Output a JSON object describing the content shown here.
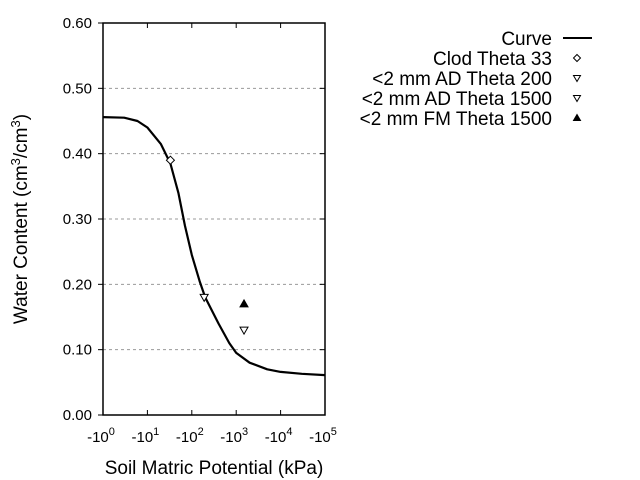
{
  "chart_data": {
    "type": "line",
    "title": "",
    "xlabel": "Soil Matric Potential (kPa)",
    "ylabel": "Water Content (cm3/cm3)",
    "ylabel_parts": {
      "pre": "Water Content (cm",
      "sup1": "3",
      "mid": "/cm",
      "sup2": "3",
      "post": ")"
    },
    "x_scale": "log (negative)",
    "xlim": [
      -1,
      -100000
    ],
    "ylim": [
      0.0,
      0.6
    ],
    "x_ticks": [
      {
        "base": "-10",
        "exp": "0"
      },
      {
        "base": "-10",
        "exp": "1"
      },
      {
        "base": "-10",
        "exp": "2"
      },
      {
        "base": "-10",
        "exp": "3"
      },
      {
        "base": "-10",
        "exp": "4"
      },
      {
        "base": "-10",
        "exp": "5"
      }
    ],
    "y_ticks": [
      "0.00",
      "0.10",
      "0.20",
      "0.30",
      "0.40",
      "0.50",
      "0.60"
    ],
    "grid": {
      "y": true,
      "x": false,
      "style": "dotted"
    },
    "legend_position": "right",
    "series": [
      {
        "name": "Curve",
        "kind": "line",
        "points": [
          [
            -1,
            0.456
          ],
          [
            -3,
            0.455
          ],
          [
            -6,
            0.45
          ],
          [
            -10,
            0.44
          ],
          [
            -20,
            0.415
          ],
          [
            -33,
            0.385
          ],
          [
            -50,
            0.34
          ],
          [
            -70,
            0.29
          ],
          [
            -100,
            0.245
          ],
          [
            -150,
            0.205
          ],
          [
            -200,
            0.18
          ],
          [
            -400,
            0.14
          ],
          [
            -700,
            0.11
          ],
          [
            -1000,
            0.095
          ],
          [
            -2000,
            0.08
          ],
          [
            -5000,
            0.07
          ],
          [
            -10000,
            0.066
          ],
          [
            -30000,
            0.063
          ],
          [
            -100000,
            0.061
          ]
        ]
      },
      {
        "name": "Clod Theta 33",
        "kind": "marker",
        "marker": "open-diamond",
        "points": [
          [
            -33,
            0.39
          ]
        ]
      },
      {
        "name": "<2 mm AD Theta 200",
        "kind": "marker",
        "marker": "open-triangle-down",
        "points": [
          [
            -190,
            0.18
          ]
        ]
      },
      {
        "name": "<2 mm AD Theta 1500",
        "kind": "marker",
        "marker": "open-triangle-down",
        "points": [
          [
            -1500,
            0.13
          ]
        ]
      },
      {
        "name": "<2 mm FM Theta 1500",
        "kind": "marker",
        "marker": "filled-triangle-up",
        "points": [
          [
            -1500,
            0.17
          ]
        ]
      }
    ]
  },
  "legend": {
    "items": [
      {
        "label": "Curve",
        "symbol": "line"
      },
      {
        "label": "Clod Theta 33",
        "symbol": "open-diamond"
      },
      {
        "label": "<2 mm AD Theta 200",
        "symbol": "open-triangle-down"
      },
      {
        "label": "<2 mm AD Theta 1500",
        "symbol": "open-triangle-down"
      },
      {
        "label": "<2 mm FM Theta 1500",
        "symbol": "filled-triangle-up"
      }
    ]
  },
  "colors": {
    "line": "#000000",
    "grid": "#999999",
    "background": "#ffffff"
  }
}
